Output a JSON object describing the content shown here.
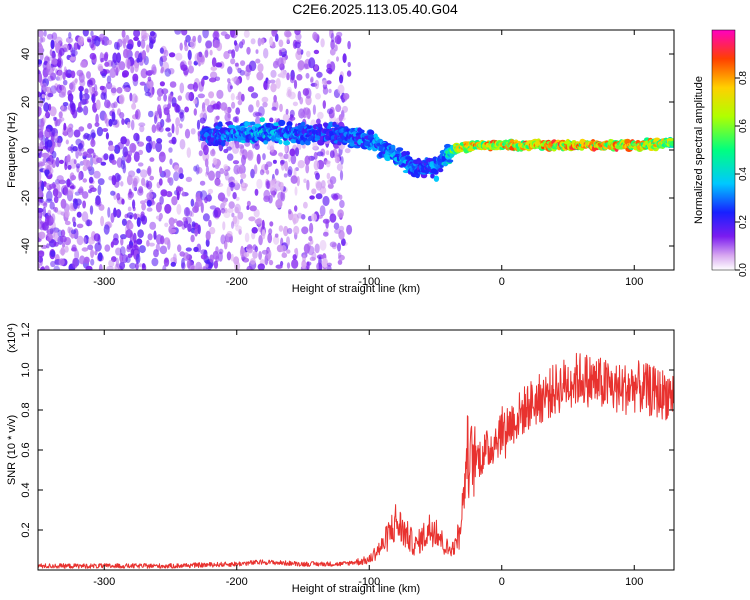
{
  "title": "C2E6.2025.113.05.40.G04",
  "chart_data": [
    {
      "type": "heatmap",
      "xlabel": "Height of straight line (km)",
      "ylabel": "Frequency (Hz)",
      "xlim": [
        -350,
        130
      ],
      "ylim": [
        -50,
        50
      ],
      "xticks": [
        "-300",
        "-200",
        "-100",
        "0",
        "100"
      ],
      "yticks": [
        "-40",
        "-20",
        "0",
        "20",
        "40"
      ],
      "colorbar": {
        "label": "Normalized spectral amplitude",
        "range": [
          0.0,
          1.0
        ],
        "ticks": [
          "0.0",
          "0.2",
          "0.4",
          "0.6",
          "0.8"
        ]
      },
      "ridge": {
        "x": [
          -225,
          -200,
          -180,
          -160,
          -140,
          -120,
          -100,
          -90,
          -80,
          -70,
          -60,
          -50,
          -45,
          -40,
          -30,
          -20,
          0,
          50,
          100,
          130
        ],
        "frequency": [
          6,
          7,
          7,
          7,
          7,
          6,
          4,
          1,
          -2,
          -6,
          -8,
          -7,
          -4,
          -1,
          1,
          2,
          2,
          2,
          2,
          3
        ],
        "amplitude": [
          0.3,
          0.35,
          0.4,
          0.35,
          0.3,
          0.3,
          0.35,
          0.35,
          0.4,
          0.35,
          0.3,
          0.35,
          0.3,
          0.5,
          0.8,
          0.85,
          0.85,
          0.9,
          0.9,
          0.7
        ]
      }
    },
    {
      "type": "line",
      "xlabel": "Height of straight line (km)",
      "ylabel": "SNR (10 * v/v)",
      "y_multiplier": "(x10⁴)",
      "xlim": [
        -350,
        130
      ],
      "ylim": [
        0,
        1.2
      ],
      "xticks": [
        "-300",
        "-200",
        "-100",
        "0",
        "100"
      ],
      "yticks": [
        "0.2",
        "0.4",
        "0.6",
        "0.8",
        "1.0",
        "1.2"
      ],
      "color": "#e8322f",
      "series": [
        {
          "x": [
            -350,
            -300,
            -250,
            -200,
            -180,
            -150,
            -120,
            -100,
            -95,
            -90,
            -85,
            -80,
            -75,
            -70,
            -65,
            -60,
            -55,
            -50,
            -45,
            -40,
            -35,
            -30,
            -28,
            -26,
            -25,
            -20,
            -10,
            0,
            10,
            20,
            30,
            40,
            50,
            60,
            70,
            80,
            90,
            100,
            110,
            120,
            130
          ],
          "y": [
            0.02,
            0.02,
            0.02,
            0.03,
            0.04,
            0.03,
            0.03,
            0.05,
            0.09,
            0.12,
            0.18,
            0.24,
            0.2,
            0.16,
            0.12,
            0.16,
            0.2,
            0.22,
            0.14,
            0.1,
            0.12,
            0.28,
            0.45,
            0.6,
            0.55,
            0.55,
            0.6,
            0.7,
            0.75,
            0.82,
            0.86,
            0.9,
            0.94,
            0.96,
            0.94,
            0.92,
            0.9,
            0.92,
            0.9,
            0.88,
            0.88
          ]
        }
      ]
    }
  ]
}
